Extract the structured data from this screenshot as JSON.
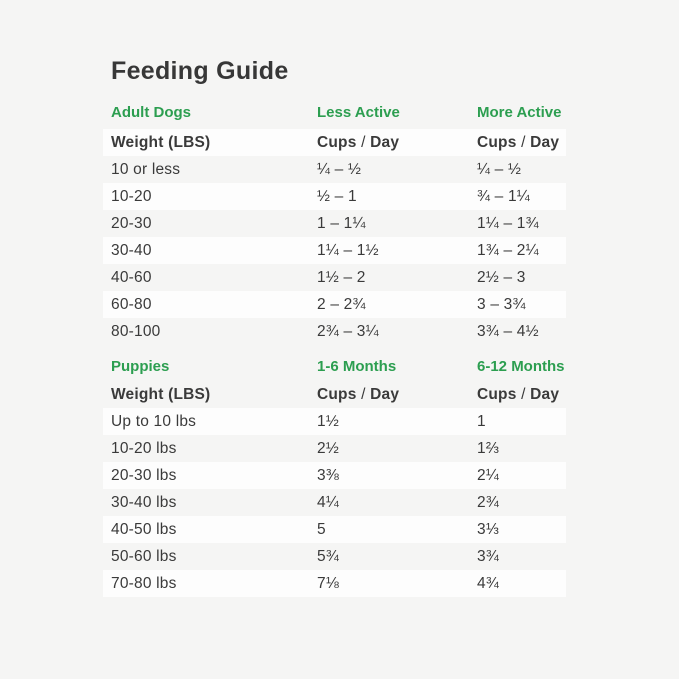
{
  "title": "Feeding Guide",
  "colors": {
    "background": "#f5f5f4",
    "row_highlight": "#fdfdfd",
    "accent_green": "#2c9e50",
    "text": "#3a3a3a"
  },
  "labels": {
    "weight": "Weight (LBS)",
    "cups": "Cups",
    "slash": "/",
    "day": "Day"
  },
  "adult_dogs": {
    "section_label": "Adult Dogs",
    "col2_label": "Less Active",
    "col3_label": "More Active",
    "rows": [
      {
        "weight": "10 or less",
        "less_active": "¼ – ½",
        "more_active": "¼ – ½"
      },
      {
        "weight": "10-20",
        "less_active": "½ – 1",
        "more_active": "¾ – 1¼"
      },
      {
        "weight": "20-30",
        "less_active": "1 – 1¼",
        "more_active": "1¼ – 1¾"
      },
      {
        "weight": "30-40",
        "less_active": "1¼ – 1½",
        "more_active": "1¾ – 2¼"
      },
      {
        "weight": "40-60",
        "less_active": "1½ – 2",
        "more_active": "2½ – 3"
      },
      {
        "weight": "60-80",
        "less_active": "2 – 2¾",
        "more_active": "3 – 3¾"
      },
      {
        "weight": "80-100",
        "less_active": "2¾ – 3¼",
        "more_active": "3¾ – 4½"
      }
    ]
  },
  "puppies": {
    "section_label": "Puppies",
    "col2_label": "1-6 Months",
    "col3_label": "6-12 Months",
    "rows": [
      {
        "weight": "Up to 10 lbs",
        "months_1_6": "1½",
        "months_6_12": "1"
      },
      {
        "weight": "10-20 lbs",
        "months_1_6": "2½",
        "months_6_12": "1⅔"
      },
      {
        "weight": "20-30 lbs",
        "months_1_6": "3⅜",
        "months_6_12": "2¼"
      },
      {
        "weight": "30-40 lbs",
        "months_1_6": "4¼",
        "months_6_12": "2¾"
      },
      {
        "weight": "40-50 lbs",
        "months_1_6": "5",
        "months_6_12": "3⅓"
      },
      {
        "weight": "50-60 lbs",
        "months_1_6": "5¾",
        "months_6_12": "3¾"
      },
      {
        "weight": "70-80 lbs",
        "months_1_6": "7⅛",
        "months_6_12": "4¾"
      }
    ]
  }
}
